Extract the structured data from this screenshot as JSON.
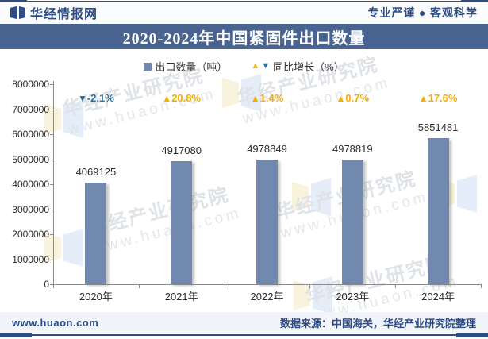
{
  "header": {
    "brand": "华经情报网",
    "slogan": "专业严谨 ● 客观科学"
  },
  "title": "2020-2024年中国紧固件出口数量",
  "legend": {
    "bars": "出口数量（吨）",
    "growth": "同比增长（%）"
  },
  "chart_data": {
    "type": "bar",
    "title": "2020-2024年中国紧固件出口数量",
    "categories": [
      "2020年",
      "2021年",
      "2022年",
      "2023年",
      "2024年"
    ],
    "series": [
      {
        "name": "出口数量（吨）",
        "type": "bar",
        "values": [
          4069125,
          4917080,
          4978849,
          4978819,
          5851481
        ]
      },
      {
        "name": "同比增长（%）",
        "type": "marker",
        "values": [
          -2.1,
          20.8,
          1.4,
          0.7,
          17.6
        ],
        "labels": [
          "-2.1%",
          "20.8%",
          "1.4%",
          "0.7%",
          "17.6%"
        ]
      }
    ],
    "ylim": [
      0,
      8000000
    ],
    "ytick_interval": 1000000,
    "grid": false,
    "legend_position": "top"
  },
  "watermark": {
    "line1": "华经产业研究院",
    "line2": "www.huaon.com"
  },
  "footer": {
    "site": "www.huaon.com",
    "source": "数据来源：中国海关，华经产业研究院整理"
  },
  "colors": {
    "navy": "#2e4d87",
    "band": "#4a6492",
    "bar": "#7189ae",
    "up": "#f5ad00",
    "down": "#2f6e9e",
    "axis": "#8a8a8a",
    "text": "#2b2b2b",
    "wm": "#dfe3e8",
    "wm_blue": "#d3e2f5",
    "wm_yellow": "#f6ebc6",
    "header_bg": "#fbfcfe",
    "footer_bg": "#f1f4f8"
  }
}
